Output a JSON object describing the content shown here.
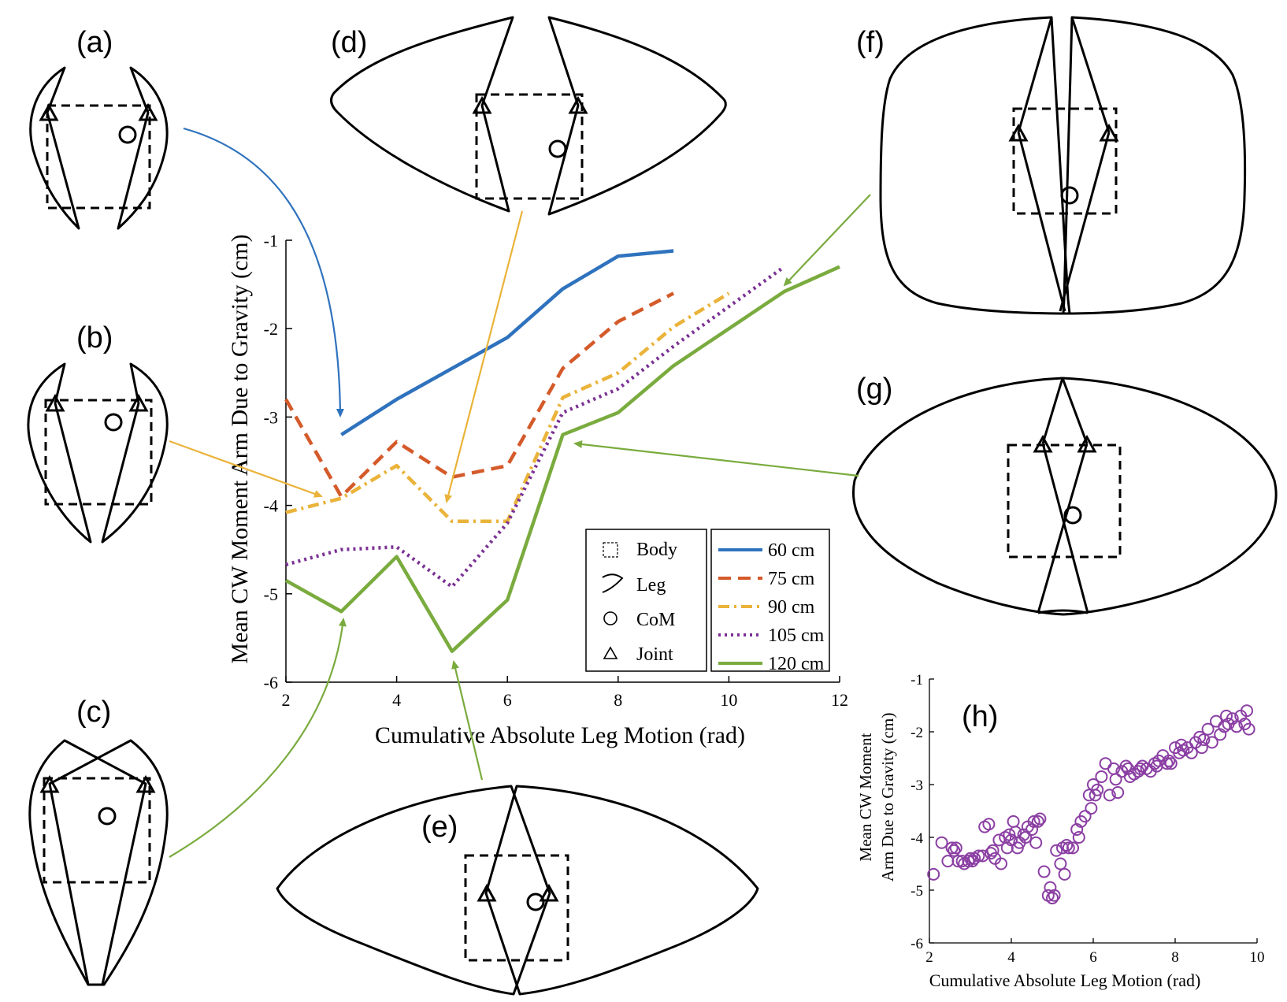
{
  "panels": {
    "a": "(a)",
    "b": "(b)",
    "c": "(c)",
    "d": "(d)",
    "e": "(e)",
    "f": "(f)",
    "g": "(g)",
    "h": "(h)"
  },
  "legend": {
    "symbols": [
      "Body",
      "Leg",
      "CoM",
      "Joint"
    ]
  },
  "colors": {
    "blue": "#2f72bd",
    "orange": "#d45a2a",
    "yellow": "#eab33a",
    "purple": "#7b3294",
    "green": "#7aab3e"
  },
  "chart_data": [
    {
      "type": "line",
      "xlabel": "Cumulative Absolute Leg Motion (rad)",
      "ylabel": "Mean CW Moment Arm Due to Gravity (cm)",
      "xlim": [
        2,
        12
      ],
      "ylim": [
        -6,
        -1
      ],
      "x_ticks": [
        "2",
        "4",
        "6",
        "8",
        "10",
        "12"
      ],
      "y_ticks": [
        "-1",
        "-2",
        "-3",
        "-4",
        "-5",
        "-6"
      ],
      "legend_position": "bottom-right",
      "series": [
        {
          "name": "60 cm",
          "color": "#2f72bd",
          "dash": "solid",
          "x": [
            3,
            4,
            5,
            6,
            7,
            8,
            9
          ],
          "y": [
            -3.2,
            -2.8,
            -2.45,
            -2.1,
            -1.55,
            -1.18,
            -1.12
          ]
        },
        {
          "name": "75 cm",
          "color": "#d45a2a",
          "dash": "dashed",
          "x": [
            2,
            3,
            4,
            5,
            6,
            7,
            8,
            9
          ],
          "y": [
            -2.8,
            -3.9,
            -3.28,
            -3.68,
            -3.55,
            -2.45,
            -1.92,
            -1.6
          ]
        },
        {
          "name": "90 cm",
          "color": "#eab33a",
          "dash": "dashdot",
          "x": [
            2,
            3,
            4,
            5,
            6,
            7,
            8,
            9,
            10
          ],
          "y": [
            -4.08,
            -3.92,
            -3.55,
            -4.18,
            -4.18,
            -2.78,
            -2.5,
            -1.98,
            -1.6
          ]
        },
        {
          "name": "105 cm",
          "color": "#7b3294",
          "dash": "dotted",
          "x": [
            2,
            3,
            4,
            5,
            6,
            7,
            8,
            9,
            10,
            11
          ],
          "y": [
            -4.67,
            -4.5,
            -4.47,
            -4.92,
            -4.2,
            -2.95,
            -2.68,
            -2.2,
            -1.75,
            -1.3
          ]
        },
        {
          "name": "120 cm",
          "color": "#7aab3e",
          "dash": "solid",
          "x": [
            2,
            3,
            4,
            5,
            6,
            7,
            8,
            9,
            10,
            11,
            12
          ],
          "y": [
            -4.85,
            -5.2,
            -4.58,
            -5.65,
            -5.07,
            -3.2,
            -2.95,
            -2.42,
            -2.0,
            -1.58,
            -1.3
          ]
        }
      ]
    },
    {
      "type": "scatter",
      "panel": "(h)",
      "xlabel": "Cumulative Absolute Leg Motion (rad)",
      "ylabel_lines": [
        "Mean CW Moment",
        "Arm Due to Gravity (cm)"
      ],
      "xlim": [
        2,
        10
      ],
      "ylim": [
        -6,
        -1
      ],
      "x_ticks": [
        "2",
        "4",
        "6",
        "8",
        "10"
      ],
      "y_ticks": [
        "-1",
        "-2",
        "-3",
        "-4",
        "-5",
        "-6"
      ],
      "color": "#8b3fa3",
      "x": [
        2.1,
        2.3,
        2.45,
        2.55,
        2.6,
        2.65,
        2.7,
        2.8,
        2.85,
        2.95,
        3.0,
        3.05,
        3.1,
        3.2,
        3.3,
        3.35,
        3.45,
        3.5,
        3.55,
        3.6,
        3.7,
        3.75,
        3.85,
        3.9,
        3.95,
        4.0,
        4.05,
        4.1,
        4.15,
        4.2,
        4.3,
        4.35,
        4.4,
        4.5,
        4.55,
        4.6,
        4.65,
        4.7,
        4.8,
        4.9,
        4.95,
        5.0,
        5.05,
        5.1,
        5.2,
        5.25,
        5.3,
        5.35,
        5.4,
        5.5,
        5.6,
        5.65,
        5.7,
        5.8,
        5.9,
        5.95,
        6.0,
        6.05,
        6.1,
        6.2,
        6.3,
        6.4,
        6.5,
        6.55,
        6.6,
        6.7,
        6.8,
        6.85,
        6.9,
        7.0,
        7.1,
        7.15,
        7.2,
        7.3,
        7.4,
        7.5,
        7.55,
        7.6,
        7.7,
        7.8,
        7.85,
        7.9,
        8.0,
        8.1,
        8.15,
        8.2,
        8.3,
        8.4,
        8.5,
        8.6,
        8.65,
        8.7,
        8.8,
        8.9,
        9.0,
        9.1,
        9.2,
        9.25,
        9.3,
        9.4,
        9.5,
        9.6,
        9.7,
        9.75,
        9.8
      ],
      "y": [
        -4.7,
        -4.1,
        -4.45,
        -4.2,
        -4.25,
        -4.2,
        -4.45,
        -4.45,
        -4.5,
        -4.45,
        -4.4,
        -4.45,
        -4.4,
        -4.35,
        -4.35,
        -3.8,
        -3.75,
        -4.3,
        -4.25,
        -4.4,
        -4.05,
        -4.5,
        -4.0,
        -4.2,
        -3.95,
        -4.05,
        -3.7,
        -3.9,
        -4.2,
        -4.1,
        -3.95,
        -4.0,
        -3.8,
        -3.85,
        -3.7,
        -4.1,
        -3.7,
        -3.65,
        -4.65,
        -5.1,
        -4.95,
        -5.15,
        -5.1,
        -4.25,
        -4.5,
        -4.2,
        -4.7,
        -4.15,
        -4.2,
        -4.2,
        -3.85,
        -4.0,
        -3.7,
        -3.6,
        -3.2,
        -3.45,
        -3.0,
        -3.2,
        -3.1,
        -2.85,
        -2.6,
        -3.2,
        -2.7,
        -2.9,
        -3.15,
        -2.75,
        -2.65,
        -2.7,
        -2.85,
        -2.8,
        -2.75,
        -2.7,
        -2.65,
        -2.7,
        -2.75,
        -2.6,
        -2.65,
        -2.55,
        -2.45,
        -2.6,
        -2.55,
        -2.6,
        -2.3,
        -2.4,
        -2.25,
        -2.35,
        -2.3,
        -2.4,
        -2.2,
        -2.1,
        -2.3,
        -2.15,
        -1.95,
        -2.2,
        -1.8,
        -2.05,
        -1.9,
        -1.7,
        -1.85,
        -1.75,
        -1.9,
        -1.7,
        -1.85,
        -1.6,
        -1.95
      ]
    }
  ]
}
